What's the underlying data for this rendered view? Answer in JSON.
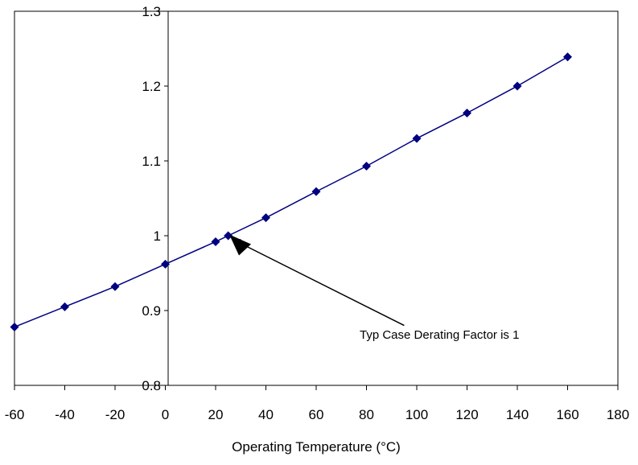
{
  "chart_data": {
    "type": "line",
    "title": "",
    "xlabel": "Operating Temperature (°C)",
    "ylabel": "",
    "xlim": [
      -60,
      180
    ],
    "ylim": [
      0.8,
      1.3
    ],
    "x_ticks": [
      -60,
      -40,
      -20,
      0,
      20,
      40,
      60,
      80,
      100,
      120,
      140,
      160,
      180
    ],
    "x_tick_labels": [
      "-60",
      "-40",
      "-20",
      "0",
      "20",
      "40",
      "60",
      "80",
      "100",
      "120",
      "140",
      "160",
      "180"
    ],
    "y_ticks": [
      0.8,
      0.9,
      1.0,
      1.1,
      1.2,
      1.3
    ],
    "y_tick_labels": [
      "0.8",
      "0.9",
      "1",
      "1.1",
      "1.2",
      "1.3"
    ],
    "grid": false,
    "legend": "none",
    "series": [
      {
        "x": [
          -60,
          -40,
          -20,
          0,
          20,
          25,
          40,
          60,
          80,
          100,
          120,
          140,
          160
        ],
        "y": [
          0.878,
          0.905,
          0.932,
          0.962,
          0.992,
          1.0,
          1.024,
          1.059,
          1.093,
          1.13,
          1.164,
          1.2,
          1.239
        ],
        "color": "#000080",
        "marker": "diamond"
      }
    ],
    "annotations": [
      {
        "text": "Typ Case Derating Factor is 1",
        "arrow_from": [
          95,
          0.88
        ],
        "arrow_to": [
          28,
          0.993
        ]
      }
    ]
  }
}
